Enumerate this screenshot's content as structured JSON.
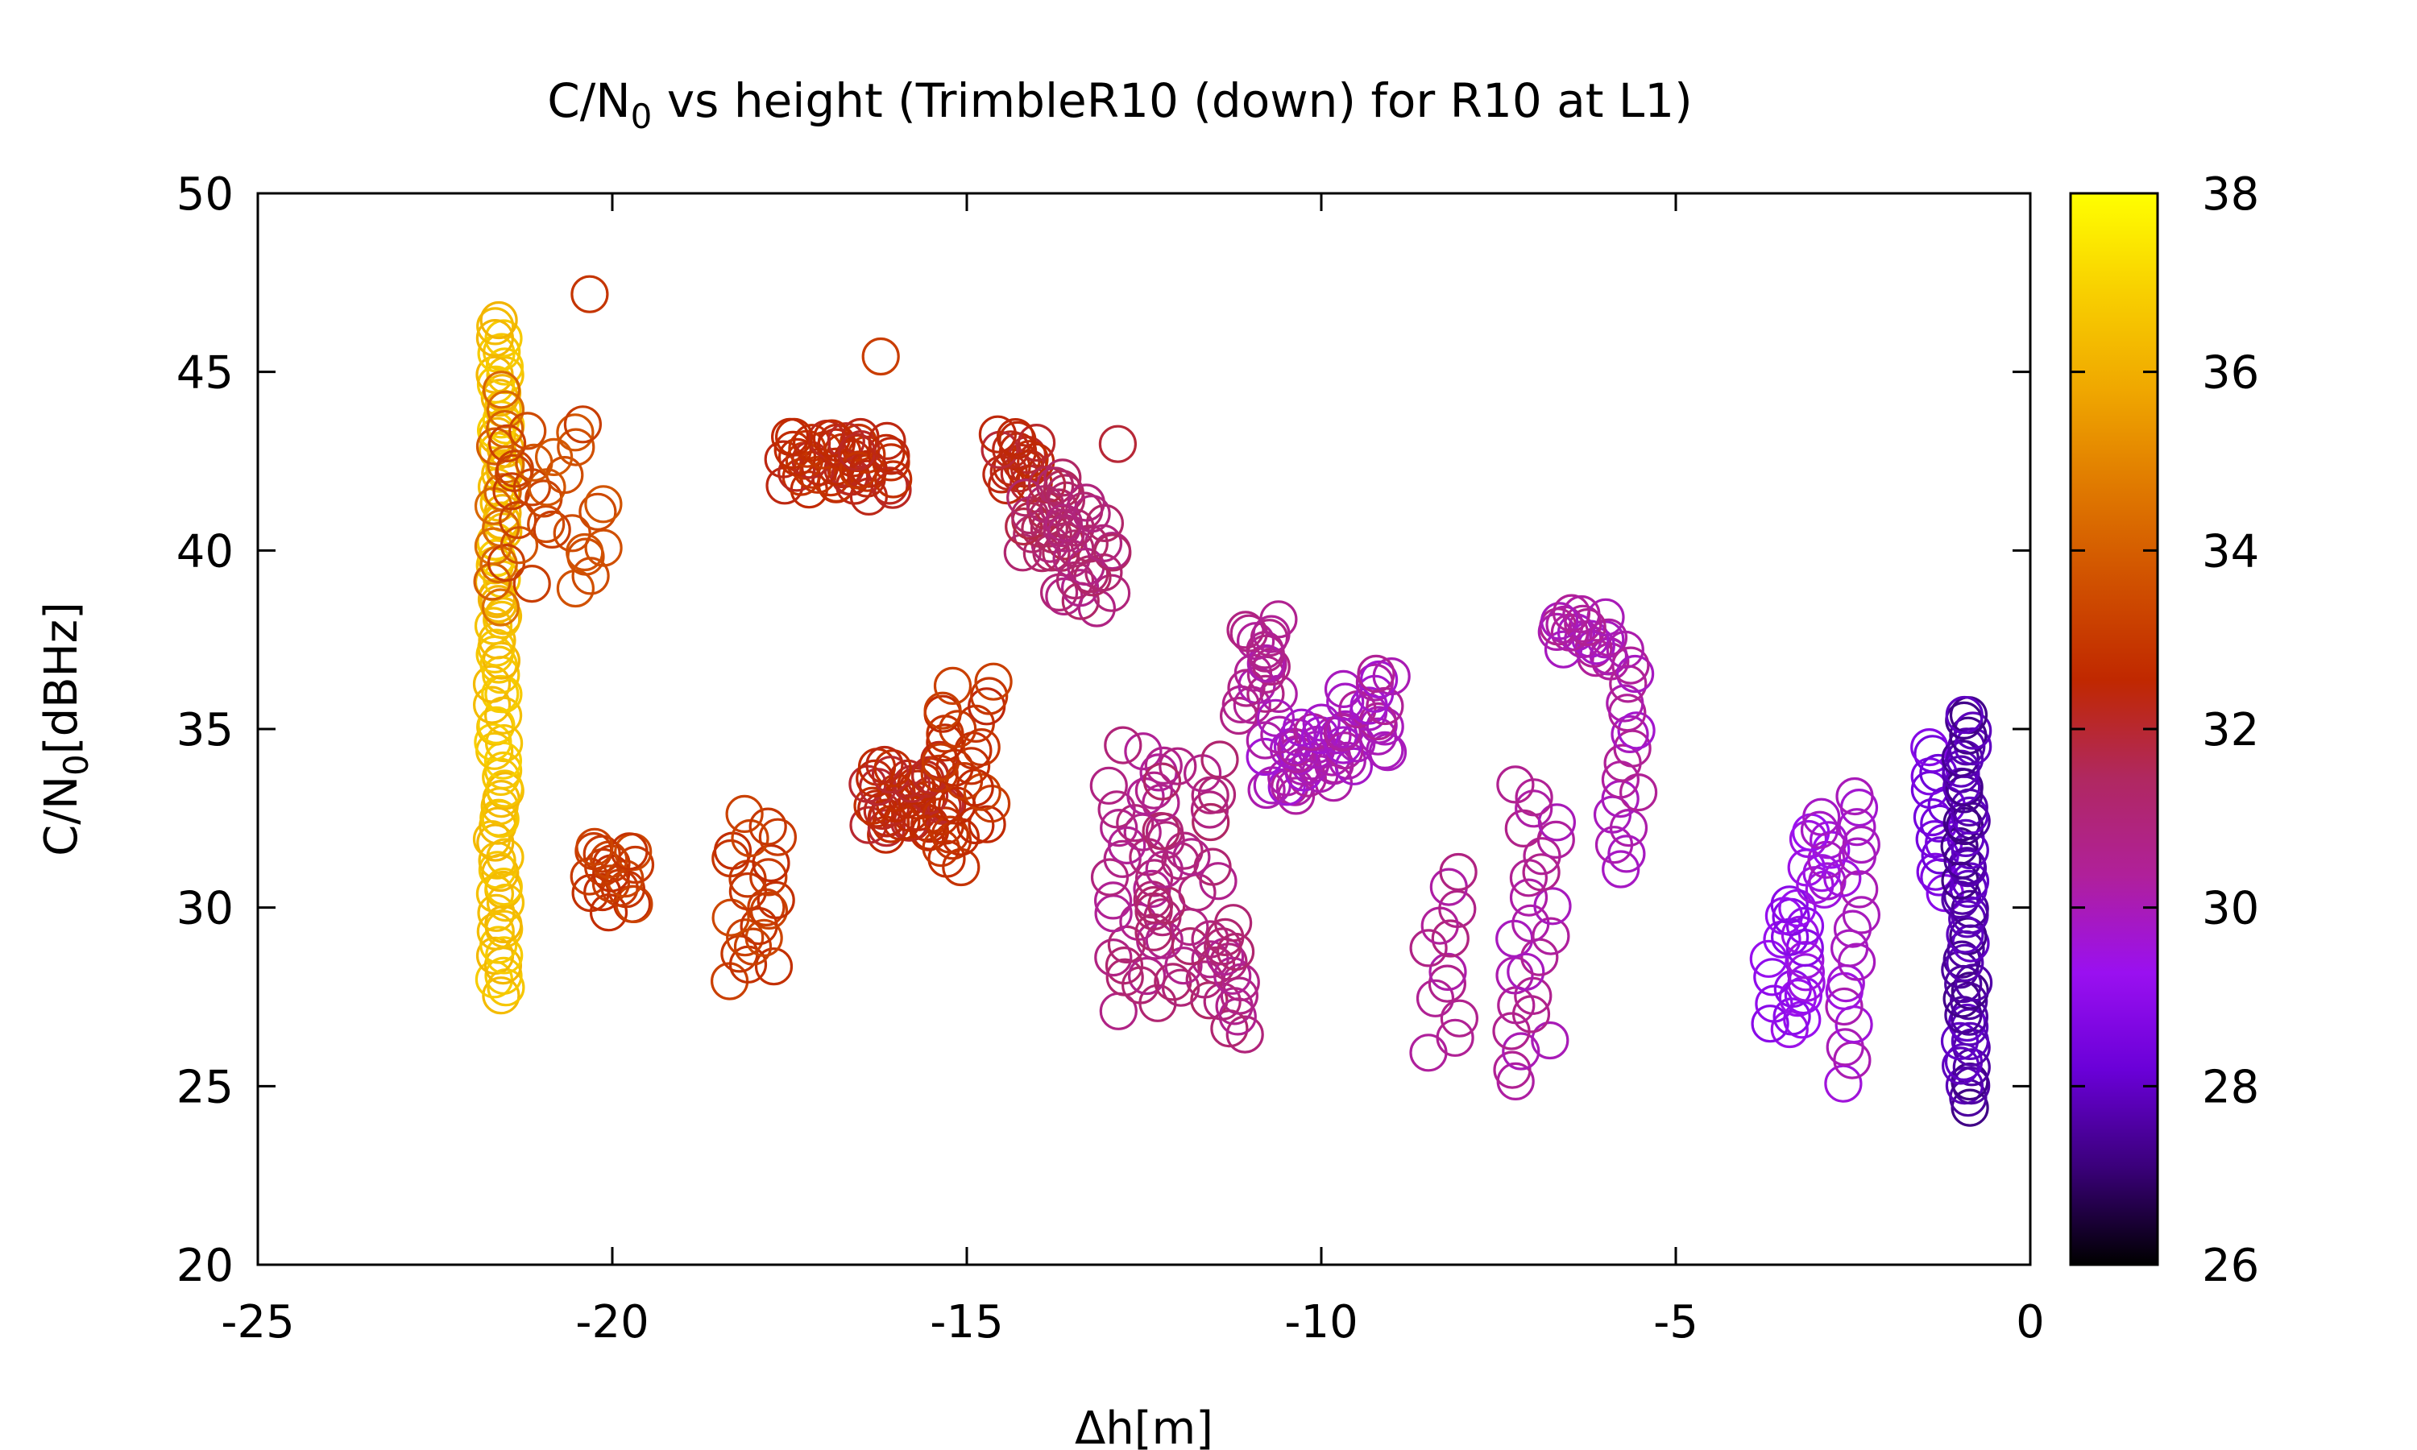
{
  "chart_data": {
    "type": "scatter",
    "title": "C/N0 vs height (TrimbleR10 (down) for R10 at L1)",
    "title_parts": {
      "prefix": "C/N",
      "sub": "0",
      "suffix": " vs height (TrimbleR10 (down) for R10 at L1)"
    },
    "xlabel": "Δh[m]",
    "ylabel": "C/N0[dBHz]",
    "ylabel_parts": {
      "prefix": "C/N",
      "sub": "0",
      "suffix": "[dBHz]"
    },
    "xlim": [
      -25,
      0
    ],
    "ylim": [
      20,
      50
    ],
    "xticks": [
      -25,
      -20,
      -15,
      -10,
      -5,
      0
    ],
    "yticks": [
      20,
      25,
      30,
      35,
      40,
      45,
      50
    ],
    "grid": false,
    "marker": "open-circle",
    "colorbar": {
      "range": [
        26,
        38
      ],
      "ticks": [
        26,
        28,
        30,
        32,
        34,
        36,
        38
      ],
      "palette": [
        "#000000",
        "#3a007a",
        "#6a00d8",
        "#9a10f0",
        "#b0209a",
        "#b02860",
        "#c02800",
        "#d05000",
        "#e07a00",
        "#f0a800",
        "#f8d000",
        "#ffff00"
      ]
    },
    "clusters": [
      {
        "x": -21.6,
        "dx": 0.1,
        "ylo": 27.5,
        "yhi": 46.5,
        "n": 90,
        "c": 36.5
      },
      {
        "x": -21.6,
        "dx": 0.1,
        "ylo": 38.5,
        "yhi": 44.5,
        "n": 12,
        "c": 34.2
      },
      {
        "x": -20.8,
        "dx": 0.7,
        "ylo": 39.0,
        "yhi": 43.6,
        "n": 28,
        "c": 33.5
      },
      {
        "x": -20.3,
        "dx": 0.05,
        "ylo": 47.2,
        "yhi": 47.2,
        "n": 1,
        "c": 33.0
      },
      {
        "x": -20.0,
        "dx": 0.35,
        "ylo": 30.0,
        "yhi": 31.8,
        "n": 20,
        "c": 33.0
      },
      {
        "x": -18.0,
        "dx": 0.35,
        "ylo": 28.0,
        "yhi": 32.5,
        "n": 22,
        "c": 33.0
      },
      {
        "x": -17.0,
        "dx": 0.6,
        "ylo": 41.8,
        "yhi": 43.2,
        "n": 40,
        "c": 32.5
      },
      {
        "x": -16.3,
        "dx": 0.3,
        "ylo": 41.5,
        "yhi": 43.0,
        "n": 12,
        "c": 32.5
      },
      {
        "x": -16.2,
        "dx": 0.05,
        "ylo": 45.5,
        "yhi": 45.5,
        "n": 1,
        "c": 33.0
      },
      {
        "x": -15.8,
        "dx": 0.6,
        "ylo": 32.0,
        "yhi": 34.0,
        "n": 45,
        "c": 32.4
      },
      {
        "x": -15.0,
        "dx": 0.4,
        "ylo": 31.2,
        "yhi": 36.3,
        "n": 30,
        "c": 32.8
      },
      {
        "x": -14.3,
        "dx": 0.3,
        "ylo": 41.8,
        "yhi": 43.2,
        "n": 20,
        "c": 32.3
      },
      {
        "x": -13.9,
        "dx": 0.35,
        "ylo": 39.8,
        "yhi": 42.0,
        "n": 25,
        "c": 31.4
      },
      {
        "x": -13.3,
        "dx": 0.4,
        "ylo": 38.5,
        "yhi": 41.2,
        "n": 25,
        "c": 31.0
      },
      {
        "x": -12.9,
        "dx": 0.05,
        "ylo": 43.0,
        "yhi": 43.0,
        "n": 1,
        "c": 32.0
      },
      {
        "x": -12.6,
        "dx": 0.4,
        "ylo": 27.2,
        "yhi": 34.5,
        "n": 30,
        "c": 30.8
      },
      {
        "x": -11.9,
        "dx": 0.5,
        "ylo": 27.5,
        "yhi": 34.0,
        "n": 35,
        "c": 31.0
      },
      {
        "x": -11.2,
        "dx": 0.25,
        "ylo": 26.5,
        "yhi": 29.5,
        "n": 14,
        "c": 30.8
      },
      {
        "x": -10.9,
        "dx": 0.3,
        "ylo": 35.5,
        "yhi": 38.0,
        "n": 20,
        "c": 30.5
      },
      {
        "x": -10.2,
        "dx": 0.6,
        "ylo": 33.2,
        "yhi": 35.2,
        "n": 35,
        "c": 30.0
      },
      {
        "x": -9.4,
        "dx": 0.4,
        "ylo": 34.0,
        "yhi": 36.5,
        "n": 25,
        "c": 30.1
      },
      {
        "x": -8.3,
        "dx": 0.25,
        "ylo": 26.0,
        "yhi": 31.0,
        "n": 12,
        "c": 30.5
      },
      {
        "x": -7.0,
        "dx": 0.35,
        "ylo": 25.2,
        "yhi": 33.5,
        "n": 25,
        "c": 30.3
      },
      {
        "x": -6.3,
        "dx": 0.4,
        "ylo": 37.0,
        "yhi": 38.2,
        "n": 22,
        "c": 30.2
      },
      {
        "x": -5.7,
        "dx": 0.2,
        "ylo": 31.2,
        "yhi": 37.2,
        "n": 18,
        "c": 30.1
      },
      {
        "x": -3.4,
        "dx": 0.3,
        "ylo": 26.5,
        "yhi": 30.2,
        "n": 22,
        "c": 29.2
      },
      {
        "x": -3.0,
        "dx": 0.2,
        "ylo": 30.5,
        "yhi": 32.5,
        "n": 12,
        "c": 29.5
      },
      {
        "x": -2.5,
        "dx": 0.15,
        "ylo": 25.2,
        "yhi": 33.2,
        "n": 18,
        "c": 29.8
      },
      {
        "x": -1.3,
        "dx": 0.15,
        "ylo": 30.5,
        "yhi": 34.5,
        "n": 14,
        "c": 28.6
      },
      {
        "x": -0.9,
        "dx": 0.1,
        "ylo": 24.5,
        "yhi": 35.5,
        "n": 60,
        "c": 27.6
      }
    ]
  }
}
